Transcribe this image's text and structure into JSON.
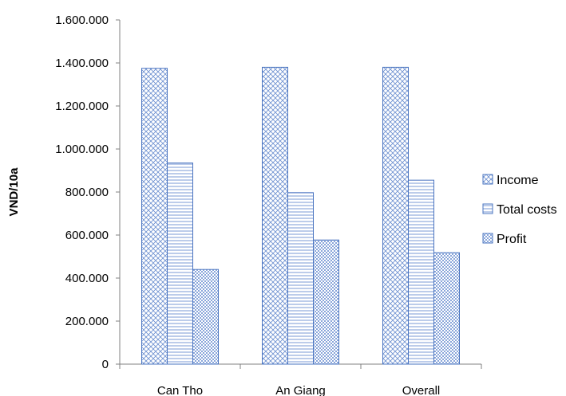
{
  "chart_data": {
    "type": "bar",
    "title": "",
    "xlabel": "",
    "ylabel": "VND/10a",
    "ylim": [
      0,
      1600000
    ],
    "y_tick_values": [
      0,
      200000,
      400000,
      600000,
      800000,
      1000000,
      1200000,
      1400000,
      1600000
    ],
    "y_tick_labels": [
      "0",
      "200.000",
      "400.000",
      "600.000",
      "800.000",
      "1.000.000",
      "1.200.000",
      "1.400.000",
      "1.600.000"
    ],
    "categories": [
      "Can Tho",
      "An Giang",
      "Overall"
    ],
    "series": [
      {
        "name": "Income",
        "values": [
          1375000,
          1380000,
          1380000
        ],
        "pattern": "cross-hatch"
      },
      {
        "name": "Total costs",
        "values": [
          935000,
          797000,
          855000
        ],
        "pattern": "horizontal-lines"
      },
      {
        "name": "Profit",
        "values": [
          440000,
          577000,
          518000
        ],
        "pattern": "checker"
      }
    ],
    "grid": false,
    "legend_position": "right",
    "colors": {
      "stroke": "#4a74c0",
      "pattern": "#6b8fd0",
      "axis": "#808080"
    }
  }
}
